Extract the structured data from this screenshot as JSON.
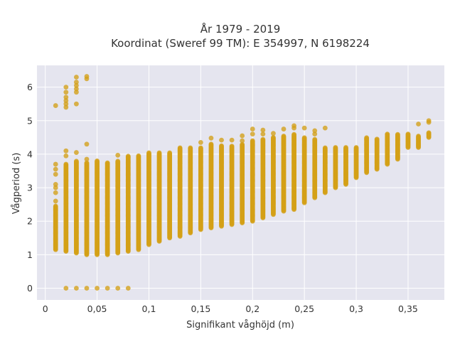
{
  "chart_data": {
    "type": "scatter",
    "title_lines": [
      "År 1979 - 2019",
      "Koordinat (Sweref 99 TM): E 354997, N 6198224"
    ],
    "xlabel": "Signifikant våghöjd (m)",
    "ylabel": "Vågperiod (s)",
    "xlim": [
      -0.008,
      0.385
    ],
    "ylim": [
      -0.35,
      6.65
    ],
    "x_ticks": [
      {
        "value": 0,
        "label": "0"
      },
      {
        "value": 0.05,
        "label": "0,05"
      },
      {
        "value": 0.1,
        "label": "0,1"
      },
      {
        "value": 0.15,
        "label": "0,15"
      },
      {
        "value": 0.2,
        "label": "0,2"
      },
      {
        "value": 0.25,
        "label": "0,25"
      },
      {
        "value": 0.3,
        "label": "0,3"
      },
      {
        "value": 0.35,
        "label": "0,35"
      }
    ],
    "y_ticks": [
      {
        "value": 0,
        "label": "0"
      },
      {
        "value": 1,
        "label": "1"
      },
      {
        "value": 2,
        "label": "2"
      },
      {
        "value": 3,
        "label": "3"
      },
      {
        "value": 4,
        "label": "4"
      },
      {
        "value": 5,
        "label": "5"
      },
      {
        "value": 6,
        "label": "6"
      }
    ],
    "grid": true,
    "background_color": "#e5e5ef",
    "marker_color": "#d4a017",
    "columns": [
      {
        "x": 0.01,
        "y_min": 1.15,
        "y_max": 2.45,
        "outliers": [
          5.45,
          3.7,
          3.55,
          3.4,
          3.1,
          3.0,
          2.85,
          2.6
        ]
      },
      {
        "x": 0.02,
        "y_min": 1.1,
        "y_max": 3.7,
        "outliers": [
          0,
          5.4,
          5.5,
          5.6,
          5.7,
          5.85,
          6.0,
          4.1,
          3.95
        ]
      },
      {
        "x": 0.03,
        "y_min": 1.05,
        "y_max": 3.8,
        "outliers": [
          0,
          5.5,
          5.85,
          5.95,
          6.05,
          6.15,
          6.3,
          4.05
        ]
      },
      {
        "x": 0.04,
        "y_min": 1.0,
        "y_max": 3.75,
        "outliers": [
          0,
          6.25,
          6.32,
          4.3,
          3.85
        ]
      },
      {
        "x": 0.05,
        "y_min": 1.0,
        "y_max": 3.8,
        "outliers": [
          0
        ]
      },
      {
        "x": 0.06,
        "y_min": 1.0,
        "y_max": 3.75,
        "outliers": [
          0
        ]
      },
      {
        "x": 0.07,
        "y_min": 1.05,
        "y_max": 3.8,
        "outliers": [
          0,
          3.97
        ]
      },
      {
        "x": 0.08,
        "y_min": 1.1,
        "y_max": 3.95,
        "outliers": [
          0
        ]
      },
      {
        "x": 0.09,
        "y_min": 1.15,
        "y_max": 3.95,
        "outliers": []
      },
      {
        "x": 0.1,
        "y_min": 1.3,
        "y_max": 4.05,
        "outliers": []
      },
      {
        "x": 0.11,
        "y_min": 1.4,
        "y_max": 4.05,
        "outliers": []
      },
      {
        "x": 0.12,
        "y_min": 1.5,
        "y_max": 4.05,
        "outliers": []
      },
      {
        "x": 0.13,
        "y_min": 1.55,
        "y_max": 4.2,
        "outliers": []
      },
      {
        "x": 0.14,
        "y_min": 1.65,
        "y_max": 4.2,
        "outliers": []
      },
      {
        "x": 0.15,
        "y_min": 1.75,
        "y_max": 4.2,
        "outliers": [
          4.35
        ]
      },
      {
        "x": 0.16,
        "y_min": 1.8,
        "y_max": 4.3,
        "outliers": [
          4.48
        ]
      },
      {
        "x": 0.17,
        "y_min": 1.85,
        "y_max": 4.25,
        "outliers": [
          4.42
        ]
      },
      {
        "x": 0.18,
        "y_min": 1.9,
        "y_max": 4.25,
        "outliers": [
          4.42
        ]
      },
      {
        "x": 0.19,
        "y_min": 1.95,
        "y_max": 4.3,
        "outliers": [
          4.4,
          4.55
        ]
      },
      {
        "x": 0.2,
        "y_min": 2.0,
        "y_max": 4.4,
        "outliers": [
          4.6,
          4.75
        ]
      },
      {
        "x": 0.21,
        "y_min": 2.1,
        "y_max": 4.45,
        "outliers": [
          4.6,
          4.72
        ]
      },
      {
        "x": 0.22,
        "y_min": 2.2,
        "y_max": 4.5,
        "outliers": [
          4.62
        ]
      },
      {
        "x": 0.23,
        "y_min": 2.3,
        "y_max": 4.55,
        "outliers": [
          4.75
        ]
      },
      {
        "x": 0.24,
        "y_min": 2.35,
        "y_max": 4.6,
        "outliers": [
          4.78,
          4.85
        ]
      },
      {
        "x": 0.25,
        "y_min": 2.55,
        "y_max": 4.5,
        "outliers": [
          4.78
        ]
      },
      {
        "x": 0.26,
        "y_min": 2.7,
        "y_max": 4.45,
        "outliers": [
          4.6,
          4.7
        ]
      },
      {
        "x": 0.27,
        "y_min": 2.85,
        "y_max": 4.2,
        "outliers": [
          4.78
        ]
      },
      {
        "x": 0.28,
        "y_min": 3.0,
        "y_max": 4.2,
        "outliers": []
      },
      {
        "x": 0.29,
        "y_min": 3.1,
        "y_max": 4.2,
        "outliers": []
      },
      {
        "x": 0.3,
        "y_min": 3.3,
        "y_max": 4.2,
        "outliers": []
      },
      {
        "x": 0.31,
        "y_min": 3.45,
        "y_max": 4.5,
        "outliers": []
      },
      {
        "x": 0.32,
        "y_min": 3.55,
        "y_max": 4.45,
        "outliers": []
      },
      {
        "x": 0.33,
        "y_min": 3.7,
        "y_max": 4.6,
        "outliers": []
      },
      {
        "x": 0.34,
        "y_min": 3.85,
        "y_max": 4.6,
        "outliers": []
      },
      {
        "x": 0.35,
        "y_min": 4.2,
        "y_max": 4.6,
        "outliers": []
      },
      {
        "x": 0.36,
        "y_min": 4.2,
        "y_max": 4.55,
        "outliers": [
          4.9
        ]
      },
      {
        "x": 0.37,
        "y_min": 4.5,
        "y_max": 4.65,
        "outliers": [
          4.95,
          5.0
        ]
      }
    ]
  }
}
